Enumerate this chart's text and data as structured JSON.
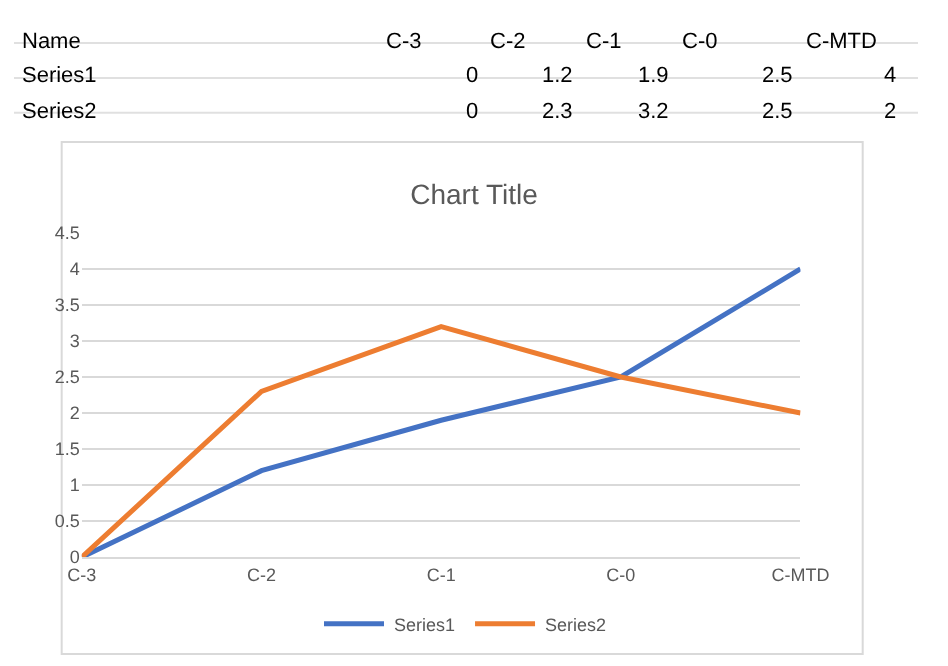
{
  "chart_data": [
    {
      "type": "other",
      "annotations": [
        "Name",
        "C-3",
        "C-2",
        "C-1",
        "C-0",
        "C-MTD",
        "Series1",
        "0",
        "1.2",
        "1.9",
        "2.5",
        "4",
        "Series2",
        "0",
        "2.3",
        "3.2",
        "2.5",
        "2"
      ]
    },
    {
      "type": "line",
      "title": "Chart Title",
      "categories": [
        "C-3",
        "C-2",
        "C-1",
        "C-0",
        "C-MTD"
      ],
      "series": [
        {
          "name": "Series1",
          "color": "#4472c4",
          "values": [
            0,
            1.2,
            1.9,
            2.5,
            4
          ]
        },
        {
          "name": "Series2",
          "color": "#ed7d31",
          "values": [
            0,
            2.3,
            3.2,
            2.5,
            2
          ]
        }
      ],
      "ylim": [
        0,
        4.5
      ],
      "yticks": [
        0,
        0.5,
        1,
        1.5,
        2,
        2.5,
        3,
        3.5,
        4,
        4.5
      ],
      "grid": "y",
      "legend": "bottom",
      "marker": "none",
      "line_style": "solid"
    }
  ]
}
